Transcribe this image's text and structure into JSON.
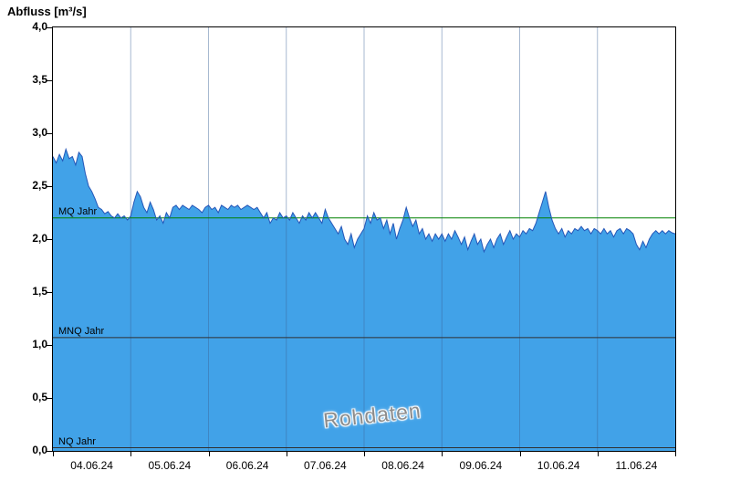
{
  "chart_data": {
    "type": "area",
    "title": "Abfluss [m³/s]",
    "watermark": "Rohdaten",
    "ylabel": "Abfluss [m³/s]",
    "xlabel": "",
    "ylim": [
      0,
      4
    ],
    "grid": "vertical-only",
    "legend_position": "none",
    "y_ticks": [
      "0,0",
      "0,5",
      "1,0",
      "1,5",
      "2,0",
      "2,5",
      "3,0",
      "3,5",
      "4,0"
    ],
    "y_tick_values": [
      0,
      0.5,
      1,
      1.5,
      2,
      2.5,
      3,
      3.5,
      4
    ],
    "x_tick_labels": [
      "04.06.24",
      "05.06.24",
      "06.06.24",
      "07.06.24",
      "08.06.24",
      "09.06.24",
      "10.06.24",
      "11.06.24"
    ],
    "x_days": 8,
    "x_sample_interval_hours": 1,
    "reference_lines": [
      {
        "label": "MQ Jahr",
        "value": 2.2,
        "color": "#008000"
      },
      {
        "label": "MNQ Jahr",
        "value": 1.07,
        "color": "#303030"
      },
      {
        "label": "NQ Jahr",
        "value": 0.03,
        "color": "#303030"
      }
    ],
    "colors": {
      "fill": "#41A2E8",
      "line": "#2456B8",
      "grid": "rgba(60,100,150,0.45)",
      "axis": "#000000"
    },
    "series": [
      {
        "name": "Abfluss Rohdaten",
        "unit": "m³/s",
        "values": [
          2.78,
          2.72,
          2.8,
          2.74,
          2.85,
          2.76,
          2.78,
          2.7,
          2.82,
          2.78,
          2.62,
          2.5,
          2.45,
          2.38,
          2.3,
          2.28,
          2.24,
          2.26,
          2.22,
          2.2,
          2.24,
          2.2,
          2.22,
          2.18,
          2.22,
          2.35,
          2.45,
          2.4,
          2.3,
          2.25,
          2.35,
          2.28,
          2.18,
          2.22,
          2.15,
          2.25,
          2.2,
          2.3,
          2.32,
          2.28,
          2.32,
          2.3,
          2.28,
          2.32,
          2.3,
          2.28,
          2.25,
          2.3,
          2.32,
          2.28,
          2.3,
          2.25,
          2.32,
          2.3,
          2.28,
          2.32,
          2.3,
          2.32,
          2.28,
          2.3,
          2.32,
          2.3,
          2.28,
          2.3,
          2.25,
          2.2,
          2.25,
          2.15,
          2.2,
          2.18,
          2.25,
          2.2,
          2.22,
          2.18,
          2.25,
          2.2,
          2.15,
          2.22,
          2.18,
          2.25,
          2.2,
          2.25,
          2.2,
          2.15,
          2.28,
          2.2,
          2.15,
          2.1,
          2.05,
          2.12,
          2.0,
          1.95,
          2.05,
          1.92,
          2.0,
          2.05,
          2.1,
          2.22,
          2.15,
          2.25,
          2.18,
          2.2,
          2.1,
          2.18,
          2.05,
          2.15,
          2.0,
          2.1,
          2.18,
          2.3,
          2.2,
          2.12,
          2.18,
          2.05,
          2.1,
          2.0,
          2.05,
          1.98,
          2.05,
          2.0,
          2.05,
          1.98,
          2.05,
          2.0,
          2.08,
          2.02,
          1.95,
          2.02,
          1.9,
          1.98,
          2.05,
          1.95,
          2.0,
          1.88,
          1.95,
          2.0,
          1.92,
          2.0,
          2.05,
          1.95,
          2.02,
          2.08,
          2.0,
          2.05,
          2.02,
          2.08,
          2.05,
          2.1,
          2.08,
          2.15,
          2.25,
          2.35,
          2.45,
          2.3,
          2.18,
          2.1,
          2.05,
          2.1,
          2.02,
          2.08,
          2.05,
          2.1,
          2.08,
          2.12,
          2.08,
          2.1,
          2.05,
          2.1,
          2.08,
          2.05,
          2.1,
          2.05,
          2.08,
          2.02,
          2.08,
          2.1,
          2.05,
          2.1,
          2.08,
          2.05,
          1.95,
          1.9,
          1.98,
          1.92,
          2.0,
          2.05,
          2.08,
          2.05,
          2.08,
          2.05,
          2.08,
          2.06,
          2.05
        ]
      }
    ]
  }
}
